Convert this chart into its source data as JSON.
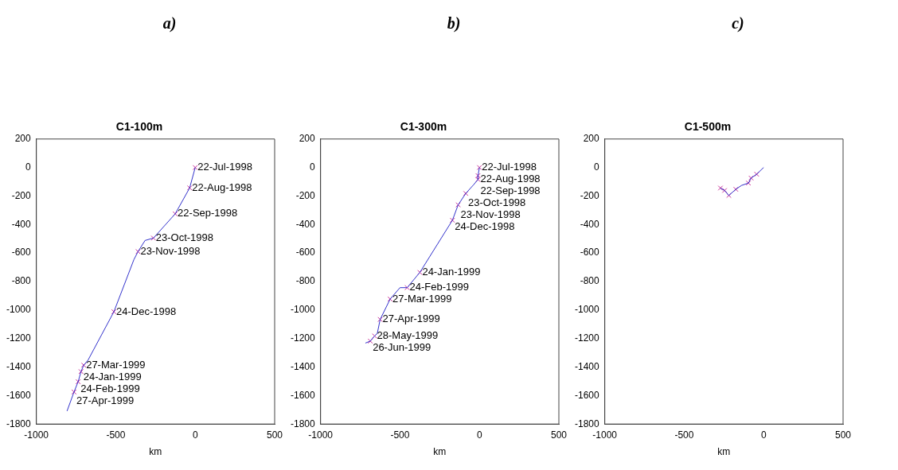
{
  "chart_data": [
    {
      "type": "line",
      "title": "C1-100m",
      "xlabel": "km",
      "xlim": [
        -1000,
        500
      ],
      "xticks": [
        -1000,
        -500,
        0,
        500
      ],
      "ylim": [
        -1800,
        200
      ],
      "yticks": [
        -1800,
        -1600,
        -1400,
        -1200,
        -1000,
        -800,
        -600,
        -400,
        -200,
        0,
        200
      ],
      "grid": false,
      "legend": false,
      "line_style": "solid",
      "series": [
        {
          "color": "#3333cc",
          "marker": "none",
          "x": [
            0,
            -35,
            -126,
            -263,
            -316,
            -360,
            -386,
            -512,
            -675,
            -702,
            -719,
            -737,
            -763,
            -807
          ],
          "values": [
            0,
            -143,
            -325,
            -495,
            -512,
            -590,
            -646,
            -1012,
            -1352,
            -1387,
            -1432,
            -1503,
            -1575,
            -1709
          ]
        },
        {
          "type": "scatter",
          "color": "#cc3399",
          "marker": "cross",
          "x": [
            0,
            -35,
            -126,
            -263,
            -360,
            -512,
            -702,
            -719,
            -737,
            -763
          ],
          "values": [
            0,
            -143,
            -325,
            -495,
            -590,
            -1012,
            -1387,
            -1432,
            -1503,
            -1575
          ]
        }
      ],
      "annotations": [
        "a)",
        {
          "text": "22-Jul-1998",
          "x": 0,
          "y": 0
        },
        {
          "text": "22-Aug-1998",
          "x": -35,
          "y": -143
        },
        {
          "text": "22-Sep-1998",
          "x": -126,
          "y": -325
        },
        {
          "text": "23-Oct-1998",
          "x": -263,
          "y": -495
        },
        {
          "text": "23-Nov-1998",
          "x": -360,
          "y": -590
        },
        {
          "text": "24-Dec-1998",
          "x": -512,
          "y": -1012
        },
        {
          "text": "27-Mar-1999",
          "x": -702,
          "y": -1387
        },
        {
          "text": "24-Jan-1999",
          "x": -719,
          "y": -1432
        },
        {
          "text": "24-Feb-1999",
          "x": -737,
          "y": -1503
        },
        {
          "text": "27-Apr-1999",
          "x": -763,
          "y": -1575
        }
      ]
    },
    {
      "type": "line",
      "title": "C1-300m",
      "xlabel": "km",
      "xlim": [
        -1000,
        500
      ],
      "xticks": [
        -1000,
        -500,
        0,
        500
      ],
      "ylim": [
        -1800,
        200
      ],
      "yticks": [
        -1800,
        -1600,
        -1400,
        -1200,
        -1000,
        -800,
        -600,
        -400,
        -200,
        0,
        200
      ],
      "grid": false,
      "legend": false,
      "line_style": "solid",
      "series": [
        {
          "color": "#3333cc",
          "marker": "none",
          "x": [
            0,
            -9,
            -9,
            -36,
            -86,
            -134,
            -170,
            -375,
            -455,
            -500,
            -562,
            -625,
            -643,
            -660,
            -687,
            -718
          ],
          "values": [
            0,
            -57,
            -84,
            -120,
            -182,
            -262,
            -370,
            -736,
            -843,
            -843,
            -923,
            -1066,
            -1164,
            -1182,
            -1218,
            -1232
          ]
        },
        {
          "type": "scatter",
          "color": "#cc3399",
          "marker": "cross",
          "x": [
            0,
            -9,
            -9,
            -86,
            -134,
            -170,
            -375,
            -455,
            -562,
            -625,
            -660,
            -687
          ],
          "values": [
            0,
            -57,
            -84,
            -182,
            -262,
            -370,
            -736,
            -843,
            -923,
            -1066,
            -1182,
            -1218
          ]
        }
      ],
      "annotations": [
        "b)",
        {
          "text": "22-Jul-1998",
          "x": 0,
          "y": 0
        },
        {
          "text": "22-Aug-1998",
          "x": -9,
          "y": -57
        },
        {
          "text": "22-Sep-1998",
          "x": -9,
          "y": -84
        },
        {
          "text": "23-Oct-1998",
          "x": -86,
          "y": -182
        },
        {
          "text": "23-Nov-1998",
          "x": -134,
          "y": -262
        },
        {
          "text": "24-Dec-1998",
          "x": -170,
          "y": -370
        },
        {
          "text": "24-Jan-1999",
          "x": -375,
          "y": -736
        },
        {
          "text": "24-Feb-1999",
          "x": -455,
          "y": -843
        },
        {
          "text": "27-Mar-1999",
          "x": -562,
          "y": -923
        },
        {
          "text": "27-Apr-1999",
          "x": -625,
          "y": -1066
        },
        {
          "text": "28-May-1999",
          "x": -660,
          "y": -1182
        },
        {
          "text": "26-Jun-1999",
          "x": -687,
          "y": -1218
        }
      ]
    },
    {
      "type": "line",
      "title": "C1-500m",
      "xlabel": "km",
      "xlim": [
        -1000,
        500
      ],
      "xticks": [
        -1000,
        -500,
        0,
        500
      ],
      "ylim": [
        -1800,
        200
      ],
      "yticks": [
        -1800,
        -1600,
        -1400,
        -1200,
        -1000,
        -800,
        -600,
        -400,
        -200,
        0,
        200
      ],
      "grid": false,
      "legend": false,
      "line_style": "solid",
      "series": [
        {
          "color": "#3333cc",
          "marker": "none",
          "x": [
            0,
            -44,
            -79,
            -96,
            -140,
            -175,
            -219,
            -246,
            -272
          ],
          "values": [
            0,
            -47,
            -74,
            -109,
            -126,
            -153,
            -196,
            -161,
            -144
          ]
        },
        {
          "type": "scatter",
          "color": "#cc3399",
          "marker": "cross",
          "x": [
            -44,
            -79,
            -96,
            -175,
            -219,
            -246,
            -272
          ],
          "values": [
            -47,
            -74,
            -109,
            -153,
            -196,
            -161,
            -144
          ]
        }
      ],
      "annotations": [
        "c)"
      ]
    }
  ]
}
